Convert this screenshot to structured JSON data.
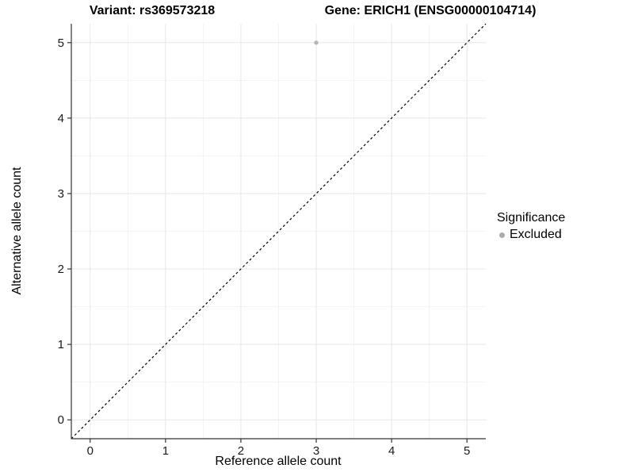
{
  "titles": {
    "variant": "Variant: rs369573218",
    "gene": "Gene: ERICH1 (ENSG00000104714)"
  },
  "colors": {
    "background": "#ffffff",
    "grid_major": "#e7e7e7",
    "grid_minor": "#f3f3f3",
    "axis_line": "#333333",
    "tick_mark": "#333333",
    "text": "#000000",
    "point": "#b5b5b5",
    "legend_dot": "#ababab",
    "reference_line": "#000000"
  },
  "chart_data": {
    "type": "scatter",
    "title_left": "Variant: rs369573218",
    "title_right": "Gene: ERICH1 (ENSG00000104714)",
    "xlabel": "Reference allele count",
    "ylabel": "Alternative allele count",
    "xlim": [
      -0.25,
      5.25
    ],
    "ylim": [
      -0.25,
      5.25
    ],
    "x_ticks": [
      0,
      1,
      2,
      3,
      4,
      5
    ],
    "y_ticks": [
      0,
      1,
      2,
      3,
      4,
      5
    ],
    "x_minor_ticks": [
      0.5,
      1.5,
      2.5,
      3.5,
      4.5
    ],
    "y_minor_ticks": [
      0.5,
      1.5,
      2.5,
      3.5,
      4.5
    ],
    "grid": true,
    "legend": {
      "title": "Significance",
      "position": "right",
      "entries": [
        {
          "label": "Excluded",
          "color": "#ababab"
        }
      ]
    },
    "series": [
      {
        "name": "Excluded",
        "color": "#b5b5b5",
        "points": [
          {
            "x": 3,
            "y": 5
          }
        ]
      }
    ],
    "reference_line": {
      "type": "identity",
      "style": "dashed",
      "from": [
        -0.25,
        -0.25
      ],
      "to": [
        5.25,
        5.25
      ],
      "color": "#000000"
    }
  }
}
